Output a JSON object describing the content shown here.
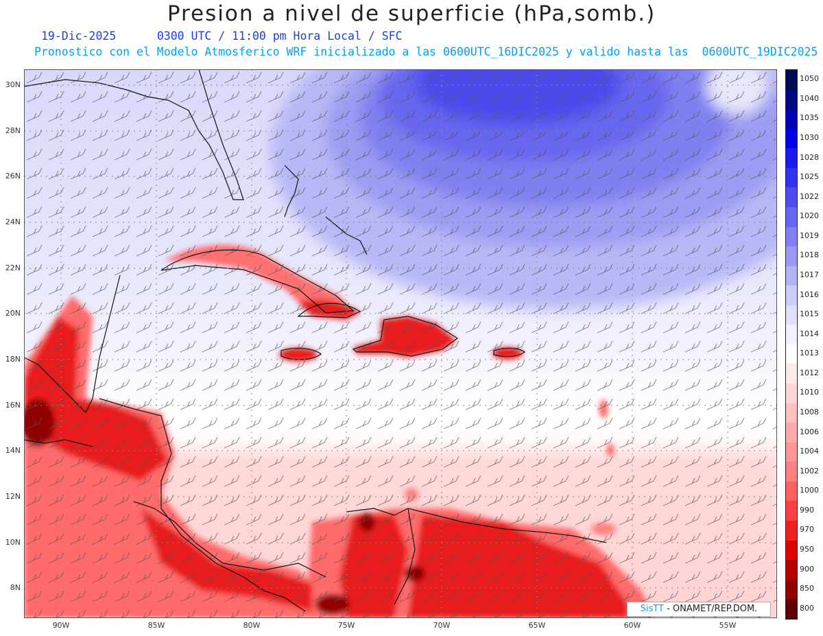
{
  "title": "Presion a nivel de superficie (hPa,somb.)",
  "subtitle_line1": "19-Dic-2025      0300 UTC / 11:00 pm Hora Local / SFC",
  "subtitle_line2": "Pronostico con el Modelo Atmosferico WRF inicializado a las 0600UTC_16DIC2025 y valido hasta las  0600UTC_19DIC2025",
  "lat_labels": [
    "30N",
    "28N",
    "26N",
    "24N",
    "22N",
    "20N",
    "18N",
    "16N",
    "14N",
    "12N",
    "10N",
    "8N"
  ],
  "lon_labels": [
    "90W",
    "85W",
    "80W",
    "75W",
    "70W",
    "65W",
    "60W",
    "55W"
  ],
  "colorbar": {
    "labels": [
      "1050",
      "1040",
      "1035",
      "1030",
      "1028",
      "1025",
      "1022",
      "1020",
      "1019",
      "1018",
      "1017",
      "1016",
      "1015",
      "1014",
      "1013",
      "1012",
      "1010",
      "1008",
      "1006",
      "1004",
      "1002",
      "1000",
      "990",
      "970",
      "950",
      "900",
      "850",
      "800"
    ],
    "colors": [
      "#000a55",
      "#000a80",
      "#0000b8",
      "#0000e6",
      "#1a1af0",
      "#3333ee",
      "#4c4cf0",
      "#6666f2",
      "#8080f4",
      "#9999f6",
      "#b3b3f8",
      "#ccccfa",
      "#e0e0fc",
      "#f2f2fe",
      "#ffffff",
      "#ffeaea",
      "#ffd5d5",
      "#ffc0c0",
      "#ffaaaa",
      "#ff9595",
      "#ff8080",
      "#ff6060",
      "#ff4040",
      "#f02020",
      "#e00000",
      "#b80000",
      "#900000",
      "#600000"
    ]
  },
  "credit_brand": "SisTT",
  "credit_text": "- ONAMET/REP.DOM."
}
